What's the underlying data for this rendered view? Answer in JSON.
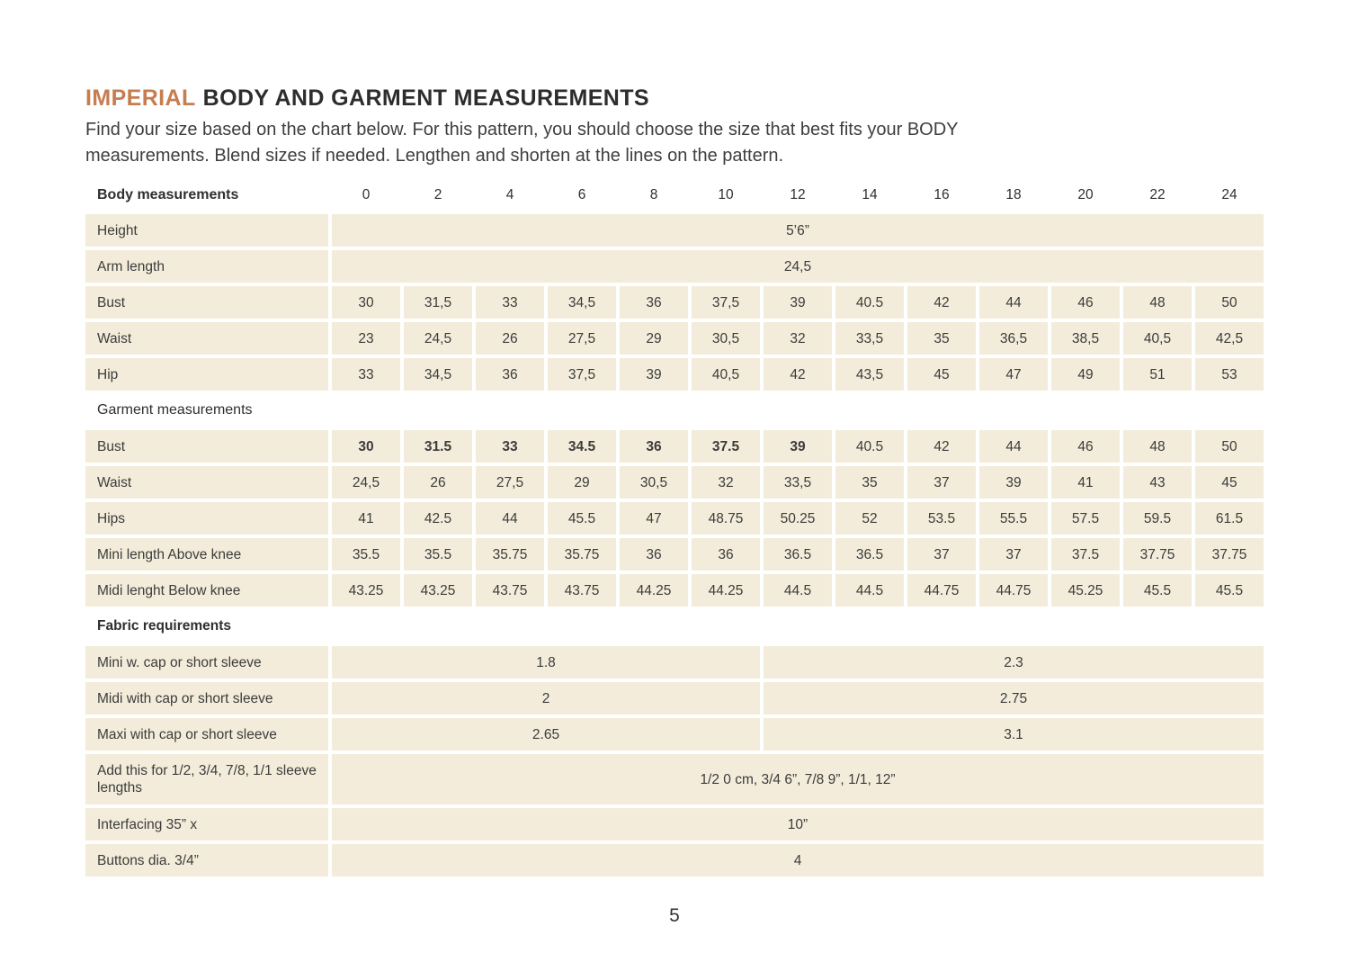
{
  "colors": {
    "accent": "#c67d50",
    "cell_background": "#f3ecda",
    "text": "#3c3c3c"
  },
  "header": {
    "title_accent": "IMPERIAL",
    "title_rest": "BODY AND GARMENT MEASUREMENTS",
    "subtitle_line1": "Find your size based on the chart below. For this pattern, you should choose the size that best fits your BODY",
    "subtitle_line2": "measurements. Blend sizes if needed. Lengthen and shorten at the lines on the pattern."
  },
  "table": {
    "header": {
      "label": "Body measurements",
      "sizes": [
        "0",
        "2",
        "4",
        "6",
        "8",
        "10",
        "12",
        "14",
        "16",
        "18",
        "20",
        "22",
        "24"
      ]
    },
    "rows": [
      {
        "kind": "merged",
        "label": "Height",
        "value": "5’6”"
      },
      {
        "kind": "merged",
        "label": "Arm length",
        "value": "24,5"
      },
      {
        "kind": "cells",
        "label": "Bust",
        "values": [
          "30",
          "31,5",
          "33",
          "34,5",
          "36",
          "37,5",
          "39",
          "40.5",
          "42",
          "44",
          "46",
          "48",
          "50"
        ]
      },
      {
        "kind": "cells",
        "label": "Waist",
        "values": [
          "23",
          "24,5",
          "26",
          "27,5",
          "29",
          "30,5",
          "32",
          "33,5",
          "35",
          "36,5",
          "38,5",
          "40,5",
          "42,5"
        ]
      },
      {
        "kind": "cells",
        "label": "Hip",
        "values": [
          "33",
          "34,5",
          "36",
          "37,5",
          "39",
          "40,5",
          "42",
          "43,5",
          "45",
          "47",
          "49",
          "51",
          "53"
        ]
      },
      {
        "kind": "section",
        "label": "Garment measurements",
        "bold": false
      },
      {
        "kind": "cells",
        "label": "Bust",
        "bold_values": 7,
        "values": [
          "30",
          "31.5",
          "33",
          "34.5",
          "36",
          "37.5",
          "39",
          "40.5",
          "42",
          "44",
          "46",
          "48",
          "50"
        ]
      },
      {
        "kind": "cells",
        "label": "Waist",
        "values": [
          "24,5",
          "26",
          "27,5",
          "29",
          "30,5",
          "32",
          "33,5",
          "35",
          "37",
          "39",
          "41",
          "43",
          "45"
        ]
      },
      {
        "kind": "cells",
        "label": "Hips",
        "values": [
          "41",
          "42.5",
          "44",
          "45.5",
          "47",
          "48.75",
          "50.25",
          "52",
          "53.5",
          "55.5",
          "57.5",
          "59.5",
          "61.5"
        ]
      },
      {
        "kind": "cells",
        "label": "Mini length Above knee",
        "values": [
          "35.5",
          "35.5",
          "35.75",
          "35.75",
          "36",
          "36",
          "36.5",
          "36.5",
          "37",
          "37",
          "37.5",
          "37.75",
          "37.75"
        ]
      },
      {
        "kind": "cells",
        "label": "Midi lenght Below knee",
        "values": [
          "43.25",
          "43.25",
          "43.75",
          "43.75",
          "44.25",
          "44.25",
          "44.5",
          "44.5",
          "44.75",
          "44.75",
          "45.25",
          "45.5",
          "45.5"
        ]
      },
      {
        "kind": "section",
        "label": "Fabric requirements",
        "bold": true
      },
      {
        "kind": "split",
        "label": "Mini w. cap or short sleeve",
        "values": [
          "1.8",
          "2.3"
        ]
      },
      {
        "kind": "split",
        "label": "Midi with cap or short sleeve",
        "values": [
          "2",
          "2.75"
        ]
      },
      {
        "kind": "split",
        "label": "Maxi with cap or short sleeve",
        "values": [
          "2.65",
          "3.1"
        ]
      },
      {
        "kind": "merged",
        "label": "Add this for 1/2, 3/4, 7/8, 1/1 sleeve lengths",
        "value": "1/2 0 cm, 3/4 6”, 7/8 9”, 1/1, 12”",
        "tall": true
      },
      {
        "kind": "merged",
        "label": "Interfacing 35” x",
        "value": "10”"
      },
      {
        "kind": "merged",
        "label": "Buttons dia. 3/4”",
        "value": "4"
      }
    ]
  },
  "footer": {
    "page_number": "5"
  }
}
